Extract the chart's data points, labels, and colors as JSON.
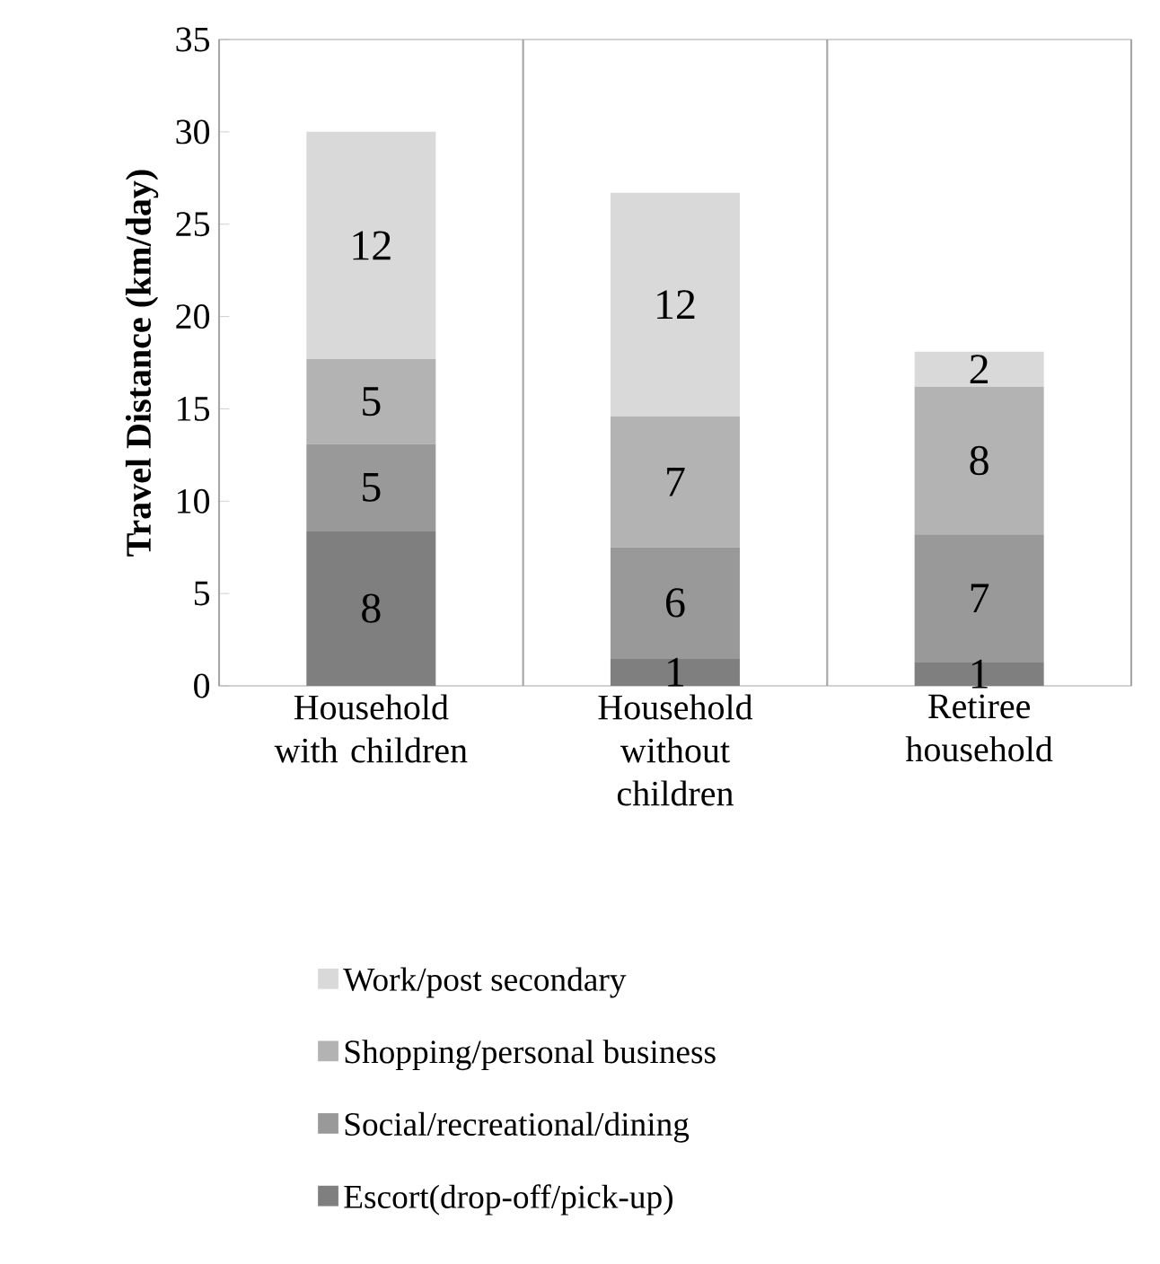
{
  "chart_data": {
    "type": "bar",
    "stacked": true,
    "ylabel": "Travel Distance (km/day)",
    "categories": [
      "Household with children",
      "Household without children",
      "Retiree household"
    ],
    "series": [
      {
        "name": "Escort(drop-off/pick-up)",
        "color": "#7f7f7f",
        "values": [
          8.4,
          1.5,
          1.3
        ],
        "value_labels": [
          "8",
          "1",
          "1"
        ]
      },
      {
        "name": "Social/recreational/dining",
        "color": "#999999",
        "values": [
          4.7,
          6.0,
          6.9
        ],
        "value_labels": [
          "5",
          "6",
          "7"
        ]
      },
      {
        "name": "Shopping/personal business",
        "color": "#b3b3b3",
        "values": [
          4.6,
          7.1,
          8.0
        ],
        "value_labels": [
          "5",
          "7",
          "8"
        ]
      },
      {
        "name": "Work/post secondary",
        "color": "#d9d9d9",
        "values": [
          12.3,
          12.1,
          1.9
        ],
        "value_labels": [
          "12",
          "12",
          "2"
        ]
      }
    ],
    "ylim": [
      0,
      35
    ],
    "yticks": [
      0,
      5,
      10,
      15,
      20,
      25,
      30,
      35
    ],
    "grid": "x",
    "legend": "bottom"
  }
}
